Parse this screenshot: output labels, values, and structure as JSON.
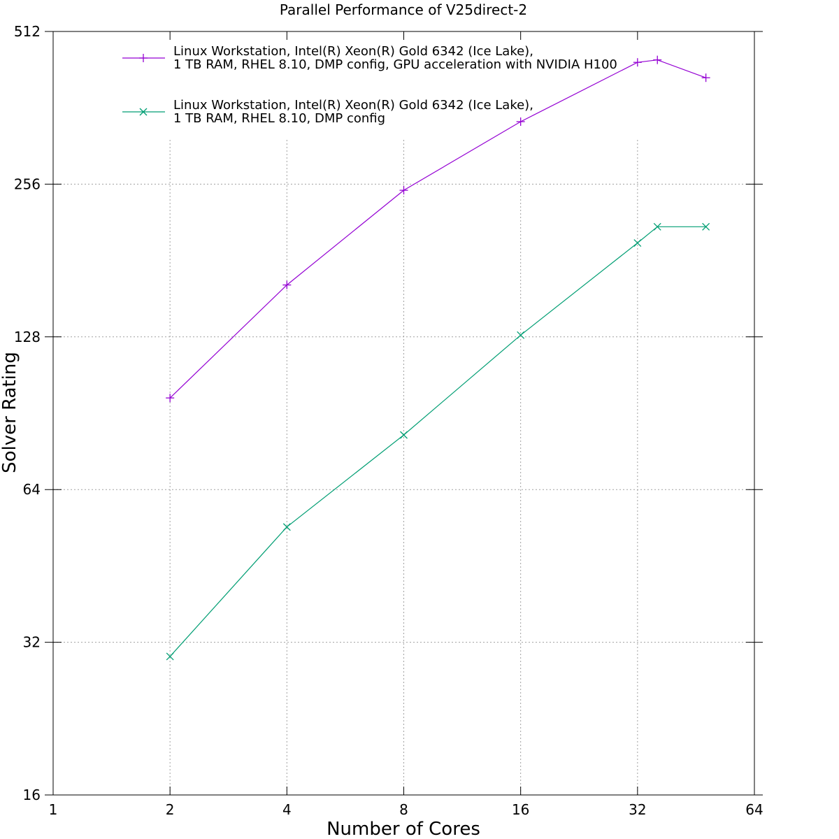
{
  "chart_data": {
    "type": "line",
    "title": "Parallel Performance of V25direct-2",
    "xlabel": "Number of Cores",
    "ylabel": "Solver Rating",
    "x_scale": "log2",
    "y_scale": "log2",
    "xlim": [
      1,
      64
    ],
    "ylim": [
      16,
      512
    ],
    "x_ticks": [
      1,
      2,
      4,
      8,
      16,
      32,
      64
    ],
    "y_ticks": [
      16,
      32,
      64,
      128,
      256,
      512
    ],
    "grid": true,
    "legend_position": "top-left",
    "series": [
      {
        "name": "Linux Workstation, Intel(R) Xeon(R) Gold 6342 (Ice Lake),\n1 TB RAM, RHEL 8.10, DMP config, GPU acceleration with NVIDIA H100",
        "legend_lines": [
          "Linux Workstation, Intel(R) Xeon(R) Gold 6342 (Ice Lake),",
          "1 TB RAM, RHEL 8.10, DMP config, GPU acceleration with NVIDIA H100"
        ],
        "color": "#9400d3",
        "marker": "plus",
        "x": [
          2,
          4,
          8,
          16,
          32,
          36,
          48
        ],
        "y": [
          97,
          162,
          249,
          340,
          445,
          450,
          415
        ]
      },
      {
        "name": "Linux Workstation, Intel(R) Xeon(R) Gold 6342 (Ice Lake),\n1 TB RAM, RHEL 8.10, DMP config",
        "legend_lines": [
          "Linux Workstation, Intel(R) Xeon(R) Gold 6342 (Ice Lake),",
          "1 TB RAM, RHEL 8.10, DMP config"
        ],
        "color": "#009e73",
        "marker": "cross",
        "x": [
          2,
          4,
          8,
          16,
          32,
          36,
          48
        ],
        "y": [
          30,
          54,
          82,
          129,
          196,
          211,
          211
        ]
      }
    ]
  }
}
